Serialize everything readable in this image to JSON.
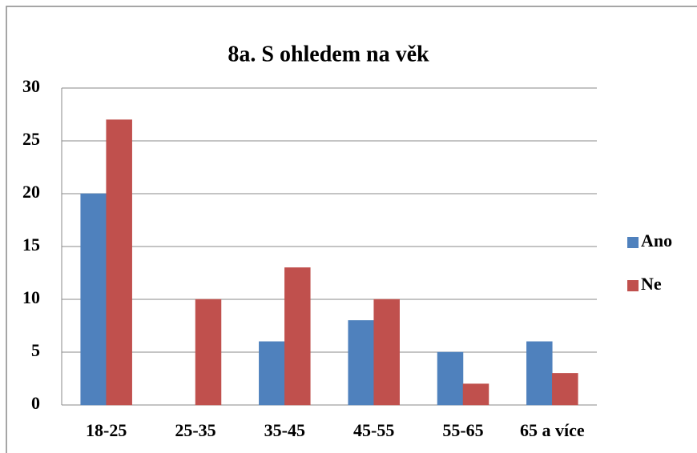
{
  "chart_data": {
    "type": "bar",
    "title": "8a. S ohledem na věk",
    "categories": [
      "18-25",
      "25-35",
      "35-45",
      "45-55",
      "55-65",
      "65 a více"
    ],
    "series": [
      {
        "name": "Ano",
        "color": "#4f81bd",
        "values": [
          20,
          0,
          6,
          8,
          5,
          6
        ]
      },
      {
        "name": "Ne",
        "color": "#c0504d",
        "values": [
          27,
          10,
          13,
          10,
          2,
          3
        ]
      }
    ],
    "ylim": [
      0,
      30
    ],
    "yticks": [
      0,
      5,
      10,
      15,
      20,
      25,
      30
    ],
    "grid": true,
    "legend": "right"
  }
}
